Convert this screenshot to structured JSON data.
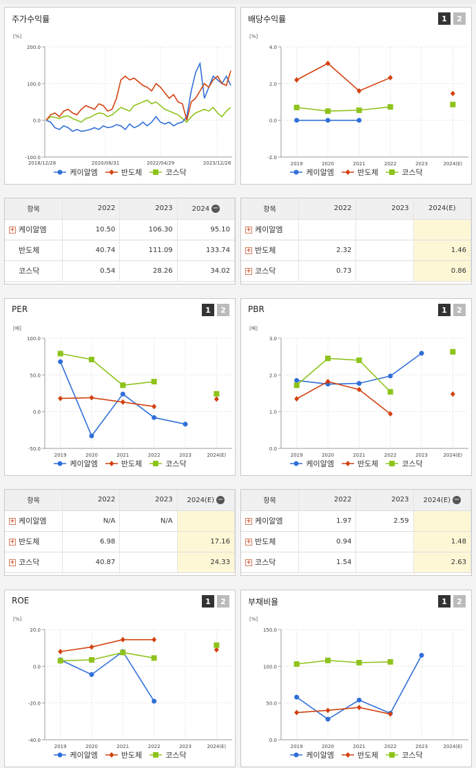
{
  "colors": {
    "keial": "#2f6fd8",
    "semi": "#d2410f",
    "kosdaq": "#8ec31c"
  },
  "legend": [
    "케이알엠",
    "반도체",
    "코스닥"
  ],
  "charts": [
    {
      "id": "return",
      "title": "주가수익률",
      "tabs": false,
      "unit": "[%]",
      "type": "line",
      "ylim": [
        -100,
        200
      ],
      "yticks": [
        "200.0",
        "100.0",
        "0.0",
        "-100.0"
      ],
      "yvals": [
        200,
        100,
        0,
        -100
      ],
      "xlabels": [
        "2018/12/28",
        "2020/08/31",
        "2022/04/29",
        "2023/12/28"
      ],
      "series": {
        "keial": [
          0,
          -5,
          -20,
          -25,
          -15,
          -20,
          -30,
          -25,
          -30,
          -28,
          -25,
          -20,
          -25,
          -15,
          -20,
          -18,
          -12,
          -15,
          -25,
          -10,
          -20,
          -15,
          -5,
          -15,
          -5,
          10,
          -5,
          -10,
          -5,
          -15,
          -8,
          -5,
          10,
          80,
          130,
          155,
          60,
          90,
          120,
          110,
          100,
          120,
          95
        ],
        "semi": [
          0,
          15,
          20,
          10,
          25,
          30,
          20,
          15,
          30,
          40,
          35,
          30,
          45,
          40,
          25,
          30,
          60,
          110,
          120,
          110,
          115,
          105,
          95,
          90,
          80,
          100,
          90,
          75,
          60,
          70,
          50,
          45,
          0,
          50,
          60,
          80,
          100,
          90,
          110,
          120,
          100,
          95,
          135
        ],
        "kosdaq": [
          0,
          10,
          8,
          5,
          10,
          12,
          5,
          0,
          -5,
          5,
          8,
          15,
          20,
          18,
          10,
          15,
          25,
          35,
          30,
          25,
          40,
          45,
          50,
          55,
          45,
          50,
          40,
          30,
          25,
          20,
          15,
          5,
          -5,
          10,
          20,
          25,
          30,
          25,
          35,
          20,
          10,
          25,
          35
        ]
      }
    },
    {
      "id": "dividend",
      "title": "배당수익률",
      "tabs": true,
      "unit": "[%]",
      "type": "point",
      "ylim": [
        -2,
        4
      ],
      "yticks": [
        "4.0",
        "2.0",
        "0.0",
        "-2.0"
      ],
      "yvals": [
        4,
        2,
        0,
        -2
      ],
      "xlabels": [
        "2019",
        "2020",
        "2021",
        "2022",
        "2023",
        "2024(E)"
      ],
      "series": {
        "keial": [
          0,
          0,
          0,
          null,
          null,
          null
        ],
        "semi": [
          2.2,
          3.1,
          1.6,
          2.32,
          null,
          1.46
        ],
        "kosdaq": [
          0.7,
          0.5,
          0.55,
          0.73,
          null,
          0.86
        ]
      }
    },
    {
      "id": "per",
      "title": "PER",
      "tabs": true,
      "unit": "[배]",
      "type": "point",
      "ylim": [
        -50,
        100
      ],
      "yticks": [
        "100.0",
        "50.0",
        "0.0",
        "-50.0"
      ],
      "yvals": [
        100,
        50,
        0,
        -50
      ],
      "xlabels": [
        "2019",
        "2020",
        "2021",
        "2022",
        "2023",
        "2024(E)"
      ],
      "series": {
        "keial": [
          68,
          -33,
          24,
          -8,
          -17,
          null
        ],
        "semi": [
          18,
          19,
          13,
          6.98,
          null,
          17.16
        ],
        "kosdaq": [
          79,
          71,
          36,
          40.87,
          null,
          24.33
        ]
      }
    },
    {
      "id": "pbr",
      "title": "PBR",
      "tabs": true,
      "unit": "[배]",
      "type": "point",
      "ylim": [
        0,
        3
      ],
      "yticks": [
        "3.0",
        "2.0",
        "1.0",
        "0.0"
      ],
      "yvals": [
        3,
        2,
        1,
        0
      ],
      "xlabels": [
        "2019",
        "2020",
        "2021",
        "2022",
        "2023",
        "2024(E)"
      ],
      "series": {
        "keial": [
          1.85,
          1.75,
          1.77,
          1.97,
          2.59,
          null
        ],
        "semi": [
          1.35,
          1.82,
          1.6,
          0.94,
          null,
          1.48
        ],
        "kosdaq": [
          1.72,
          2.45,
          2.4,
          1.54,
          null,
          2.63
        ]
      }
    },
    {
      "id": "roe",
      "title": "ROE",
      "tabs": true,
      "unit": "[%]",
      "type": "point",
      "ylim": [
        -40,
        20
      ],
      "yticks": [
        "20.0",
        "0.0",
        "-20.0",
        "-40.0"
      ],
      "yvals": [
        20,
        0,
        -20,
        -40
      ],
      "xlabels": [
        "2019",
        "2020",
        "2021",
        "2022",
        "2023",
        "2024(E)"
      ],
      "series": {
        "keial": [
          3.5,
          -4.5,
          8,
          -19,
          null,
          null
        ],
        "semi": [
          8,
          10.5,
          14.5,
          14.5,
          null,
          9
        ],
        "kosdaq": [
          3,
          3.5,
          7.5,
          4.5,
          null,
          11.5
        ]
      }
    },
    {
      "id": "debt",
      "title": "부채비율",
      "tabs": true,
      "unit": "[%]",
      "type": "point",
      "ylim": [
        0,
        150
      ],
      "yticks": [
        "150.0",
        "100.0",
        "50.0",
        "0.0"
      ],
      "yvals": [
        150,
        100,
        50,
        0
      ],
      "xlabels": [
        "2019",
        "2020",
        "2021",
        "2022",
        "2023",
        "2024(E)"
      ],
      "series": {
        "keial": [
          58,
          28,
          54,
          36,
          115,
          null
        ],
        "semi": [
          37,
          40,
          44,
          35,
          null,
          null
        ],
        "kosdaq": [
          103,
          108,
          105,
          106,
          null,
          null
        ]
      }
    }
  ],
  "tables": [
    {
      "id": "return-table",
      "header": [
        "항목",
        "2022",
        "2023",
        "2024"
      ],
      "minus": true,
      "highlight": false,
      "rows": [
        {
          "name": "케이알엠",
          "plus": true,
          "vals": [
            "10.50",
            "106.30",
            "95.10"
          ]
        },
        {
          "name": "반도체",
          "plus": false,
          "vals": [
            "40.74",
            "111.09",
            "133.74"
          ]
        },
        {
          "name": "코스닥",
          "plus": false,
          "vals": [
            "0.54",
            "28.26",
            "34.02"
          ]
        }
      ]
    },
    {
      "id": "dividend-table",
      "header": [
        "항목",
        "2022",
        "2023",
        "2024(E)"
      ],
      "minus": false,
      "highlight": true,
      "rows": [
        {
          "name": "케이알엠",
          "plus": true,
          "vals": [
            "",
            "",
            ""
          ]
        },
        {
          "name": "반도체",
          "plus": true,
          "vals": [
            "2.32",
            "",
            "1.46"
          ]
        },
        {
          "name": "코스닥",
          "plus": true,
          "vals": [
            "0.73",
            "",
            "0.86"
          ]
        }
      ]
    },
    {
      "id": "per-table",
      "header": [
        "항목",
        "2022",
        "2023",
        "2024(E)"
      ],
      "minus": true,
      "highlight": true,
      "rows": [
        {
          "name": "케이알엠",
          "plus": true,
          "vals": [
            "N/A",
            "N/A",
            ""
          ]
        },
        {
          "name": "반도체",
          "plus": true,
          "vals": [
            "6.98",
            "",
            "17.16"
          ]
        },
        {
          "name": "코스닥",
          "plus": true,
          "vals": [
            "40.87",
            "",
            "24.33"
          ]
        }
      ]
    },
    {
      "id": "pbr-table",
      "header": [
        "항목",
        "2022",
        "2023",
        "2024(E)"
      ],
      "minus": true,
      "highlight": true,
      "rows": [
        {
          "name": "케이알엠",
          "plus": true,
          "vals": [
            "1.97",
            "2.59",
            ""
          ]
        },
        {
          "name": "반도체",
          "plus": true,
          "vals": [
            "0.94",
            "",
            "1.48"
          ]
        },
        {
          "name": "코스닥",
          "plus": true,
          "vals": [
            "1.54",
            "",
            "2.63"
          ]
        }
      ]
    }
  ]
}
